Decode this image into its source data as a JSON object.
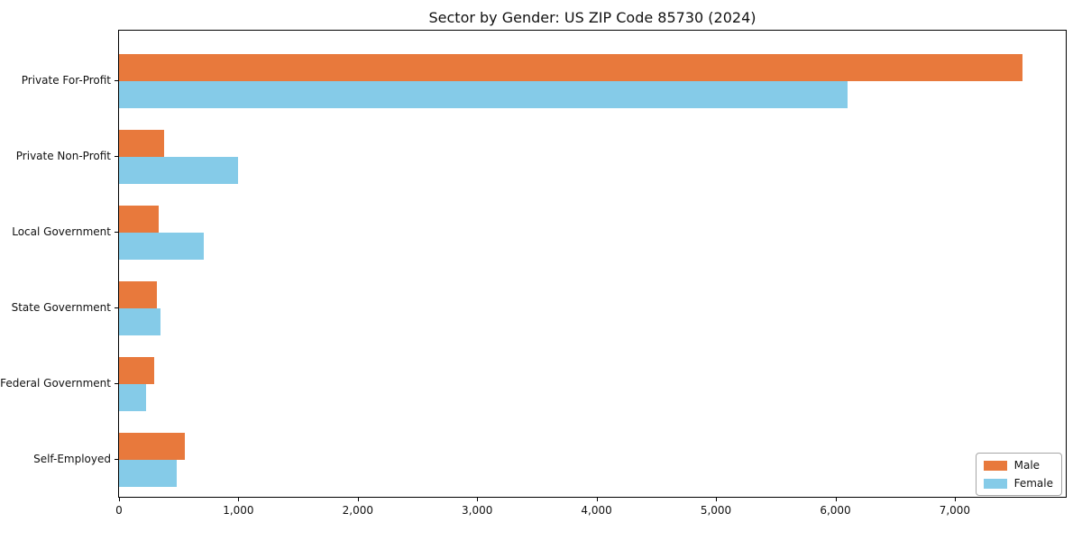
{
  "chart_data": {
    "type": "bar",
    "orientation": "horizontal",
    "title": "Sector by Gender: US ZIP Code 85730 (2024)",
    "categories": [
      "Private For-Profit",
      "Private Non-Profit",
      "Local Government",
      "State Government",
      "Federal Government",
      "Self-Employed"
    ],
    "series": [
      {
        "name": "Male",
        "color": "#e8793c",
        "values": [
          7565,
          380,
          330,
          320,
          295,
          550
        ]
      },
      {
        "name": "Female",
        "color": "#85cbe8",
        "values": [
          6100,
          1000,
          710,
          350,
          225,
          480
        ]
      }
    ],
    "xlabel": "",
    "ylabel": "",
    "xlim": [
      0,
      7930
    ],
    "x_ticks": [
      0,
      1000,
      2000,
      3000,
      4000,
      5000,
      6000,
      7000
    ],
    "x_tick_labels": [
      "0",
      "1,000",
      "2,000",
      "3,000",
      "4,000",
      "5,000",
      "6,000",
      "7,000"
    ],
    "grid": false,
    "legend": {
      "position": "lower right",
      "entries": [
        {
          "label": "Male",
          "color": "#e8793c"
        },
        {
          "label": "Female",
          "color": "#85cbe8"
        }
      ]
    }
  }
}
